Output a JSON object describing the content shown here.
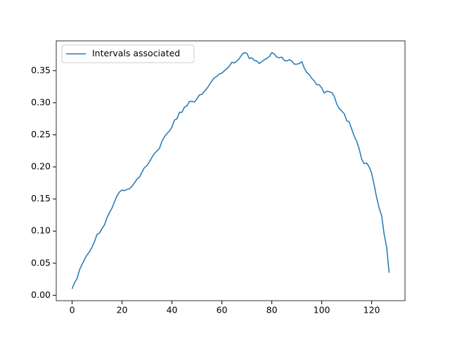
{
  "chart_data": {
    "type": "line",
    "x": [
      0,
      1,
      2,
      3,
      4,
      5,
      6,
      7,
      8,
      9,
      10,
      11,
      12,
      13,
      14,
      15,
      16,
      17,
      18,
      19,
      20,
      21,
      22,
      23,
      24,
      25,
      26,
      27,
      28,
      29,
      30,
      31,
      32,
      33,
      34,
      35,
      36,
      37,
      38,
      39,
      40,
      41,
      42,
      43,
      44,
      45,
      46,
      47,
      48,
      49,
      50,
      51,
      52,
      53,
      54,
      55,
      56,
      57,
      58,
      59,
      60,
      61,
      62,
      63,
      64,
      65,
      66,
      67,
      68,
      69,
      70,
      71,
      72,
      73,
      74,
      75,
      76,
      77,
      78,
      79,
      80,
      81,
      82,
      83,
      84,
      85,
      86,
      87,
      88,
      89,
      90,
      91,
      92,
      93,
      94,
      95,
      96,
      97,
      98,
      99,
      100,
      101,
      102,
      103,
      104,
      105,
      106,
      107,
      108,
      109,
      110,
      111,
      112,
      113,
      114,
      115,
      116,
      117,
      118,
      119,
      120,
      121,
      122,
      123,
      124,
      125,
      126,
      127
    ],
    "series": [
      {
        "name": "Intervals associated",
        "color": "#1f77b4",
        "values": [
          0.01,
          0.02,
          0.026,
          0.04,
          0.048,
          0.056,
          0.063,
          0.068,
          0.075,
          0.084,
          0.095,
          0.097,
          0.104,
          0.11,
          0.121,
          0.129,
          0.136,
          0.146,
          0.155,
          0.161,
          0.164,
          0.163,
          0.165,
          0.166,
          0.17,
          0.175,
          0.181,
          0.184,
          0.192,
          0.199,
          0.202,
          0.208,
          0.215,
          0.221,
          0.225,
          0.229,
          0.24,
          0.247,
          0.252,
          0.256,
          0.262,
          0.273,
          0.275,
          0.285,
          0.285,
          0.293,
          0.295,
          0.302,
          0.302,
          0.301,
          0.306,
          0.312,
          0.313,
          0.318,
          0.322,
          0.328,
          0.334,
          0.339,
          0.341,
          0.345,
          0.346,
          0.35,
          0.353,
          0.357,
          0.363,
          0.362,
          0.365,
          0.369,
          0.375,
          0.378,
          0.377,
          0.369,
          0.37,
          0.366,
          0.365,
          0.361,
          0.364,
          0.367,
          0.369,
          0.372,
          0.378,
          0.376,
          0.371,
          0.37,
          0.371,
          0.366,
          0.365,
          0.367,
          0.365,
          0.36,
          0.36,
          0.361,
          0.364,
          0.354,
          0.347,
          0.344,
          0.338,
          0.334,
          0.328,
          0.328,
          0.323,
          0.315,
          0.318,
          0.317,
          0.316,
          0.31,
          0.298,
          0.291,
          0.287,
          0.283,
          0.272,
          0.27,
          0.259,
          0.248,
          0.24,
          0.228,
          0.212,
          0.205,
          0.206,
          0.2,
          0.19,
          0.172,
          0.152,
          0.136,
          0.124,
          0.095,
          0.075,
          0.035
        ]
      }
    ],
    "xlim": [
      -6.35,
      133.35
    ],
    "xticks": [
      0,
      20,
      40,
      60,
      80,
      100,
      120
    ],
    "ylim": [
      -0.0084,
      0.3964
    ],
    "yticks": [
      {
        "value": 0,
        "label": "0.00"
      },
      {
        "value": 0.05,
        "label": "0.05"
      },
      {
        "value": 0.1,
        "label": "0.10"
      },
      {
        "value": 0.15,
        "label": "0.15"
      },
      {
        "value": 0.2,
        "label": "0.20"
      },
      {
        "value": 0.25,
        "label": "0.25"
      },
      {
        "value": 0.3,
        "label": "0.30"
      },
      {
        "value": 0.35,
        "label": "0.35"
      }
    ],
    "legend": "upper left"
  }
}
